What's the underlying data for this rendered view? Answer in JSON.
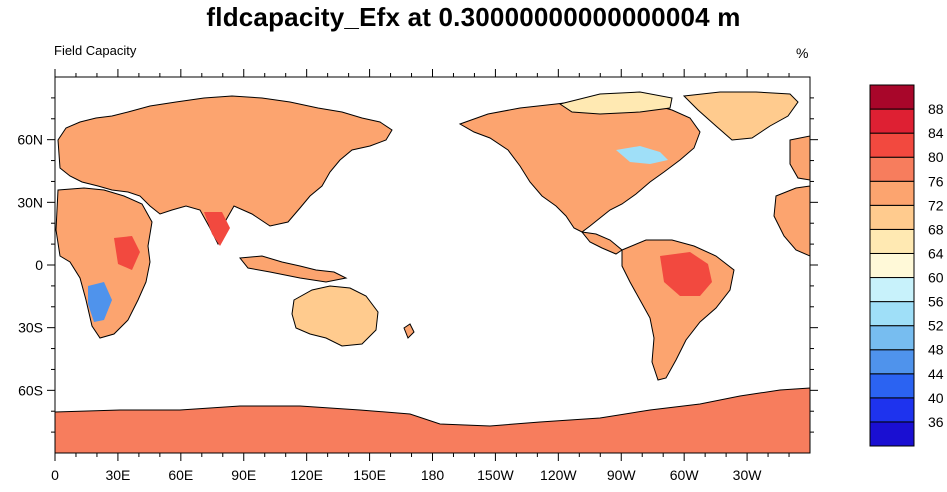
{
  "title": "fldcapacity_Efx at 0.30000000000000004 m",
  "subtitle_left": "Field Capacity",
  "units": "%",
  "chart_data": {
    "type": "heatmap",
    "title": "fldcapacity_Efx at 0.30000000000000004 m",
    "subtitle": "Field Capacity",
    "units": "%",
    "map_projection": "cylindrical equidistant, centered on 180",
    "x_ticks": [
      "0",
      "30E",
      "60E",
      "90E",
      "120E",
      "150E",
      "180",
      "150W",
      "120W",
      "90W",
      "60W",
      "30W"
    ],
    "x_tick_values": [
      0,
      30,
      60,
      90,
      120,
      150,
      180,
      210,
      240,
      270,
      300,
      330
    ],
    "y_ticks": [
      "60N",
      "30N",
      "0",
      "30S",
      "60S"
    ],
    "y_tick_values": [
      60,
      30,
      0,
      -30,
      -60
    ],
    "xlim": [
      0,
      360
    ],
    "ylim": [
      -90,
      90
    ],
    "colorbar_levels": [
      "36",
      "40",
      "44",
      "48",
      "52",
      "56",
      "60",
      "64",
      "68",
      "72",
      "76",
      "80",
      "84",
      "88"
    ],
    "colorbar_colors": [
      "#1a0fd2",
      "#1e33ee",
      "#2b63f2",
      "#4f93ec",
      "#77bdf0",
      "#9fdff8",
      "#c8f2fb",
      "#fff9d8",
      "#ffe9b2",
      "#ffcb8e",
      "#fca46f",
      "#f77d5d",
      "#f2493f",
      "#de2033",
      "#a8062a"
    ],
    "grid": false,
    "legend_position": "right"
  }
}
